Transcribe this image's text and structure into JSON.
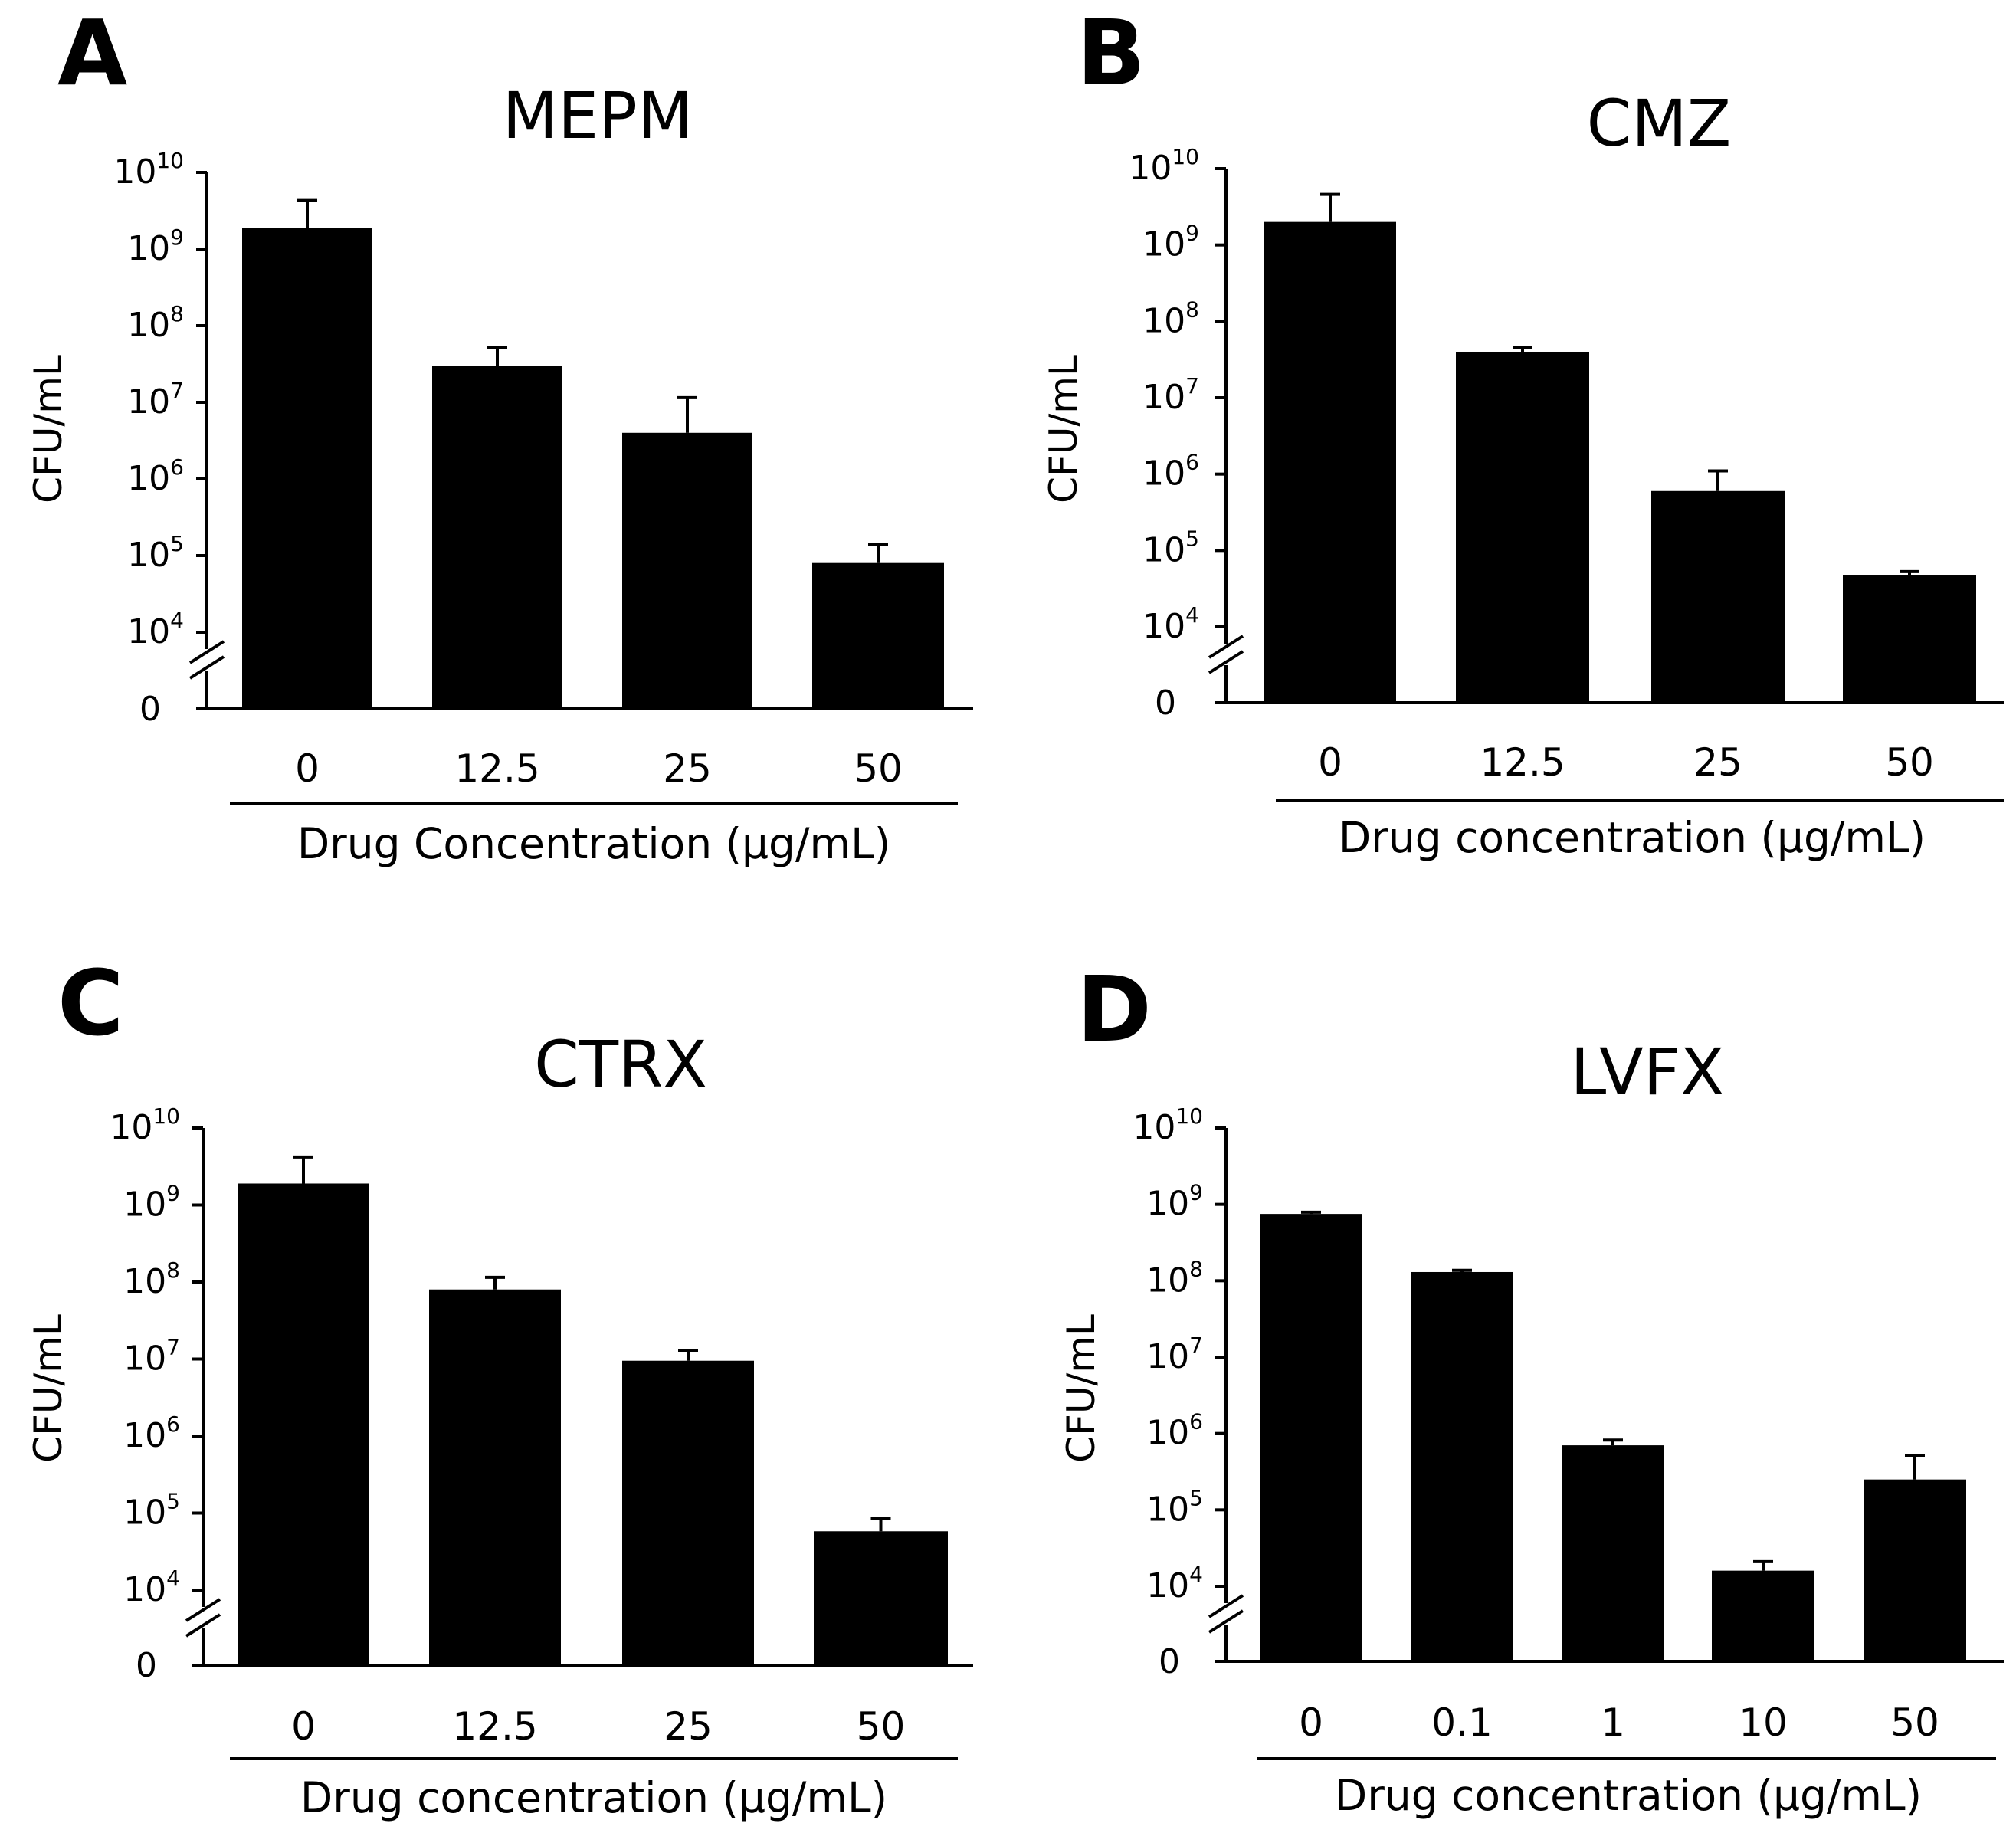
{
  "chart_data": [
    {
      "type": "bar",
      "panel": "A",
      "title": "MEPM",
      "ylabel": "CFU/mL",
      "xlabel": "Drug Concentration (µg/mL)",
      "yscale": "log",
      "ylim": [
        10000,
        10000000000
      ],
      "y_break_label": "0",
      "y_ticks": [
        {
          "base": "10",
          "exp": "10"
        },
        {
          "base": "10",
          "exp": "9"
        },
        {
          "base": "10",
          "exp": "8"
        },
        {
          "base": "10",
          "exp": "7"
        },
        {
          "base": "10",
          "exp": "6"
        },
        {
          "base": "10",
          "exp": "5"
        },
        {
          "base": "10",
          "exp": "4"
        }
      ],
      "categories": [
        "0",
        "12.5",
        "25",
        "50"
      ],
      "values": [
        1900000000,
        30000000,
        4000000,
        80000
      ],
      "error_upper": [
        4300000000,
        52000000,
        11500000,
        140000
      ]
    },
    {
      "type": "bar",
      "panel": "B",
      "title": "CMZ",
      "ylabel": "CFU/mL",
      "xlabel": "Drug concentration (µg/mL)",
      "yscale": "log",
      "ylim": [
        10000,
        10000000000
      ],
      "y_break_label": "0",
      "y_ticks": [
        {
          "base": "10",
          "exp": "10"
        },
        {
          "base": "10",
          "exp": "9"
        },
        {
          "base": "10",
          "exp": "8"
        },
        {
          "base": "10",
          "exp": "7"
        },
        {
          "base": "10",
          "exp": "6"
        },
        {
          "base": "10",
          "exp": "5"
        },
        {
          "base": "10",
          "exp": "4"
        }
      ],
      "categories": [
        "0",
        "12.5",
        "25",
        "50"
      ],
      "values": [
        2000000000,
        40000000,
        600000,
        47000
      ],
      "error_upper": [
        4600000000,
        45000000,
        1100000,
        53000
      ]
    },
    {
      "type": "bar",
      "panel": "C",
      "title": "CTRX",
      "ylabel": "CFU/mL",
      "xlabel": "Drug concentration (µg/mL)",
      "yscale": "log",
      "ylim": [
        10000,
        10000000000
      ],
      "y_break_label": "0",
      "y_ticks": [
        {
          "base": "10",
          "exp": "10"
        },
        {
          "base": "10",
          "exp": "9"
        },
        {
          "base": "10",
          "exp": "8"
        },
        {
          "base": "10",
          "exp": "7"
        },
        {
          "base": "10",
          "exp": "6"
        },
        {
          "base": "10",
          "exp": "5"
        },
        {
          "base": "10",
          "exp": "4"
        }
      ],
      "categories": [
        "0",
        "12.5",
        "25",
        "50"
      ],
      "values": [
        1900000000,
        80000000,
        9500000,
        58000
      ],
      "error_upper": [
        4200000000,
        115000000,
        13000000,
        85000
      ]
    },
    {
      "type": "bar",
      "panel": "D",
      "title": "LVFX",
      "ylabel": "CFU/mL",
      "xlabel": "Drug concentration (µg/mL)",
      "yscale": "log",
      "ylim": [
        10000,
        10000000000
      ],
      "y_break_label": "0",
      "y_ticks": [
        {
          "base": "10",
          "exp": "10"
        },
        {
          "base": "10",
          "exp": "9"
        },
        {
          "base": "10",
          "exp": "8"
        },
        {
          "base": "10",
          "exp": "7"
        },
        {
          "base": "10",
          "exp": "6"
        },
        {
          "base": "10",
          "exp": "5"
        },
        {
          "base": "10",
          "exp": "4"
        }
      ],
      "categories": [
        "0",
        "0.1",
        "1",
        "10",
        "50"
      ],
      "values": [
        750000000,
        130000000,
        700000,
        16000,
        250000
      ],
      "error_upper": [
        790000000,
        137000000,
        820000,
        21000,
        520000
      ]
    }
  ]
}
